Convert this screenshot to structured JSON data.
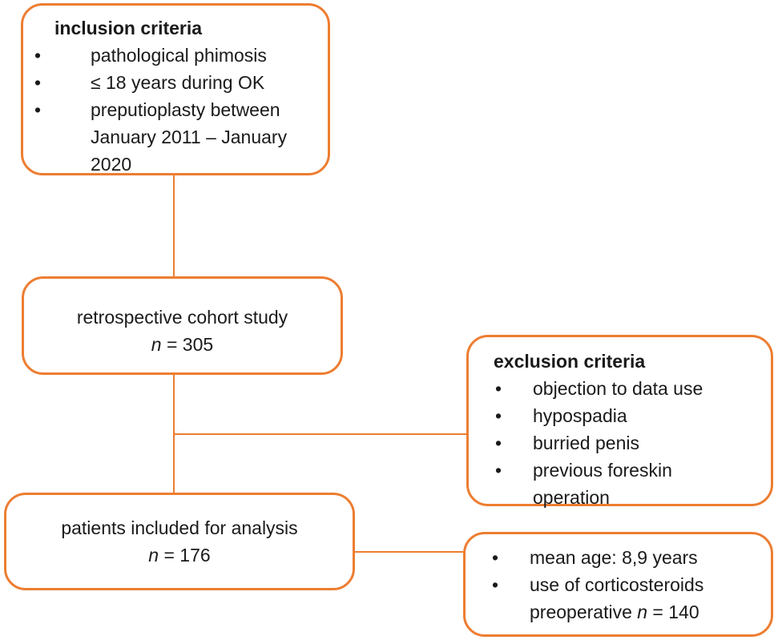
{
  "meta": {
    "bullet": "•",
    "accent_color": "#ED7D31",
    "text_color": "#1A1A1A",
    "background_color": "#FFFFFF"
  },
  "boxes": {
    "inclusion": {
      "title": "inclusion criteria",
      "items": [
        "pathological phimosis",
        "≤ 18 years during OK",
        "preputioplasty between\nJanuary 2011 – January\n2020"
      ]
    },
    "cohort": {
      "line1": "retrospective cohort study",
      "n_symbol": "n",
      "n_rest": " = 305"
    },
    "exclusion": {
      "title": "exclusion criteria",
      "items": [
        "objection to data use",
        "hypospadia",
        "burried penis",
        "previous foreskin\noperation"
      ]
    },
    "included": {
      "line1": "patients included for analysis",
      "n_symbol": "n",
      "n_rest": " = 176"
    },
    "details": {
      "item1": "mean age: 8,9 years",
      "item2_line1": "use of corticosteroids",
      "item2_line2_pre": "preoperative ",
      "item2_n_symbol": "n",
      "item2_line2_post": " = 140"
    }
  }
}
